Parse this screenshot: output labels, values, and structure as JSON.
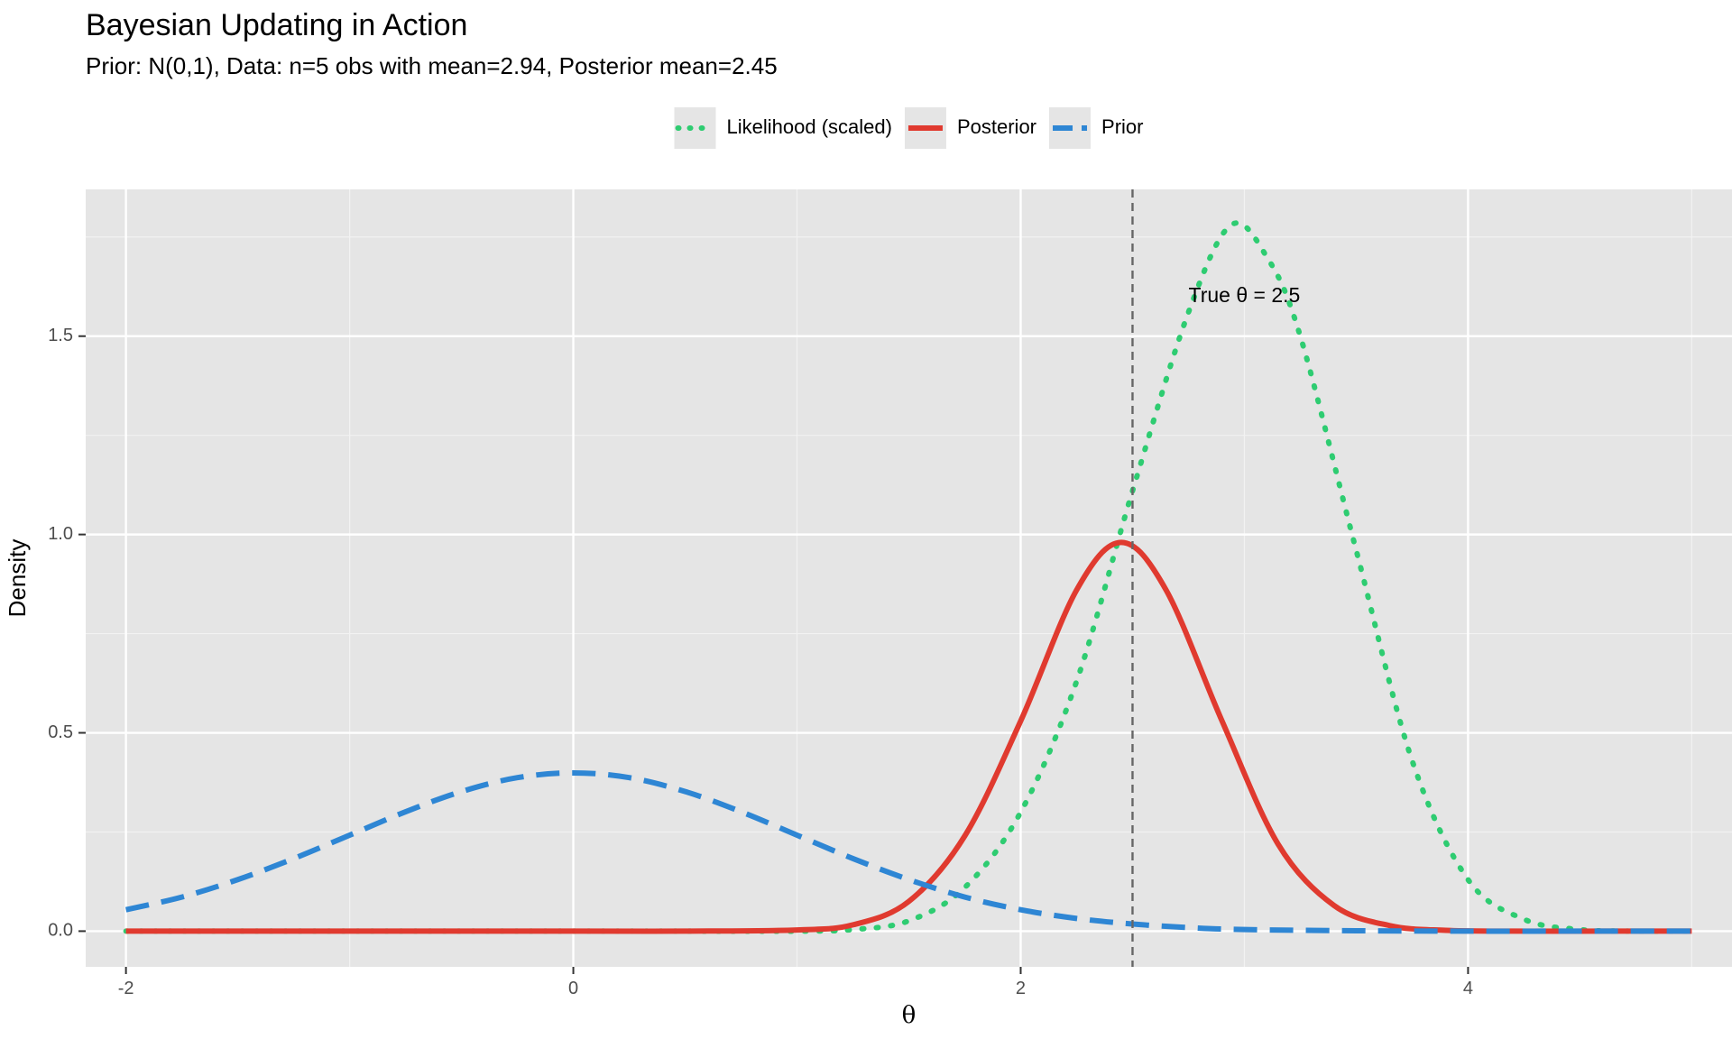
{
  "chart_data": {
    "type": "line",
    "title": "Bayesian Updating in Action",
    "subtitle": "Prior: N(0,1), Data: n=5 obs with mean=2.94, Posterior mean=2.45",
    "xlabel": "θ",
    "ylabel": "Density",
    "xlim": [
      -2.18,
      5.18
    ],
    "ylim": [
      -0.09,
      1.87
    ],
    "x_ticks": [
      {
        "value": -2,
        "label": "-2"
      },
      {
        "value": 0,
        "label": "0"
      },
      {
        "value": 2,
        "label": "2"
      },
      {
        "value": 4,
        "label": "4"
      }
    ],
    "x_minor_ticks": [
      -1,
      1,
      3,
      5
    ],
    "y_ticks": [
      {
        "value": 0,
        "label": "0.0"
      },
      {
        "value": 0.5,
        "label": "0.5"
      },
      {
        "value": 1.0,
        "label": "1.0"
      },
      {
        "value": 1.5,
        "label": "1.5"
      }
    ],
    "y_minor_ticks": [
      0.25,
      0.75,
      1.25,
      1.75
    ],
    "grid": true,
    "legend_position": "top",
    "series": [
      {
        "name": "Likelihood (scaled)",
        "color": "#2ecc71",
        "linetype": "dotted",
        "x": [
          -2.0,
          -1.5,
          -1.0,
          -0.5,
          0.0,
          0.5,
          1.0,
          1.25,
          1.5,
          1.75,
          2.0,
          2.25,
          2.5,
          2.75,
          2.94,
          3.1,
          3.25,
          3.5,
          3.75,
          4.0,
          4.25,
          4.5,
          4.75,
          5.0
        ],
        "y": [
          0.0,
          0.0,
          0.0,
          0.0,
          0.0,
          0.0,
          0.0,
          0.004,
          0.026,
          0.11,
          0.3,
          0.63,
          1.11,
          1.56,
          1.78,
          1.7,
          1.5,
          0.96,
          0.43,
          0.13,
          0.03,
          0.004,
          0.0,
          0.0
        ]
      },
      {
        "name": "Posterior",
        "color": "#e03a2f",
        "linetype": "solid",
        "x": [
          -2.0,
          -1.0,
          0.0,
          0.5,
          1.0,
          1.25,
          1.5,
          1.75,
          2.0,
          2.25,
          2.45,
          2.65,
          2.9,
          3.15,
          3.4,
          3.65,
          3.9,
          4.2,
          4.6,
          5.0
        ],
        "y": [
          0.0,
          0.0,
          0.0,
          0.0,
          0.003,
          0.016,
          0.075,
          0.24,
          0.53,
          0.86,
          0.98,
          0.86,
          0.53,
          0.22,
          0.065,
          0.014,
          0.002,
          0.0,
          0.0,
          0.0
        ]
      },
      {
        "name": "Prior",
        "color": "#2e86d4",
        "linetype": "dashed",
        "x": [
          -2.0,
          -1.75,
          -1.5,
          -1.25,
          -1.0,
          -0.75,
          -0.5,
          -0.25,
          0.0,
          0.25,
          0.5,
          0.75,
          1.0,
          1.25,
          1.5,
          1.75,
          2.0,
          2.25,
          2.5,
          2.75,
          3.0,
          3.5,
          4.0,
          4.5,
          5.0
        ],
        "y": [
          0.054,
          0.086,
          0.13,
          0.183,
          0.242,
          0.301,
          0.352,
          0.387,
          0.399,
          0.387,
          0.352,
          0.301,
          0.242,
          0.183,
          0.13,
          0.086,
          0.054,
          0.032,
          0.018,
          0.009,
          0.004,
          0.001,
          0.0,
          0.0,
          0.0
        ]
      }
    ],
    "reference_line": {
      "x": 2.5,
      "color": "#666666",
      "linetype": "dashed"
    },
    "annotation": {
      "text": "True θ = 2.5",
      "x": 3.0,
      "y": 1.6
    },
    "colors": {
      "panel_background": "#e5e5e5",
      "grid_major": "#ffffff",
      "grid_minor": "#f2f2f2",
      "legend_key_background": "#e5e5e5",
      "tick_color": "#333333"
    }
  }
}
